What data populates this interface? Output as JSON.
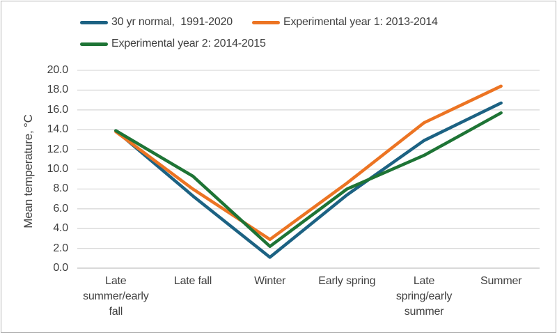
{
  "chart_data": {
    "type": "line",
    "title": "",
    "xlabel": "",
    "ylabel": "Mean temperature, °C",
    "ylim": [
      0.0,
      20.0
    ],
    "ytick_step": 2.0,
    "ytick_labels": [
      "0.0",
      "2.0",
      "4.0",
      "6.0",
      "8.0",
      "10.0",
      "12.0",
      "14.0",
      "16.0",
      "18.0",
      "20.0"
    ],
    "grid": "horizontal",
    "legend_position": "top-left",
    "categories": [
      "Late summer/early fall",
      "Late fall",
      "Winter",
      "Early spring",
      "Late spring/early summer",
      "Summer"
    ],
    "categories_wrapped": [
      [
        "Late",
        "summer/early",
        "fall"
      ],
      [
        "Late fall"
      ],
      [
        "Winter"
      ],
      [
        "Early spring"
      ],
      [
        "Late",
        "spring/early",
        "summer"
      ],
      [
        "Summer"
      ]
    ],
    "series": [
      {
        "name": "30 yr normal,  1991-2020",
        "color": "#1c6283",
        "values": [
          13.9,
          7.3,
          1.1,
          7.4,
          12.9,
          16.7
        ]
      },
      {
        "name": "Experimental year 1: 2013-2014",
        "color": "#ec7423",
        "values": [
          13.8,
          8.0,
          2.9,
          8.6,
          14.7,
          18.4
        ]
      },
      {
        "name": "Experimental year 2: 2014-2015",
        "color": "#1e7435",
        "values": [
          13.9,
          9.3,
          2.2,
          8.0,
          11.4,
          15.7
        ]
      }
    ]
  },
  "styles": {
    "grid_color": "#d9d9d9",
    "axis_line_color": "#c2c2c2",
    "text_color": "#404040",
    "frame_border_color": "#b3b3b3",
    "background": "#ffffff",
    "line_width": 4.5
  }
}
